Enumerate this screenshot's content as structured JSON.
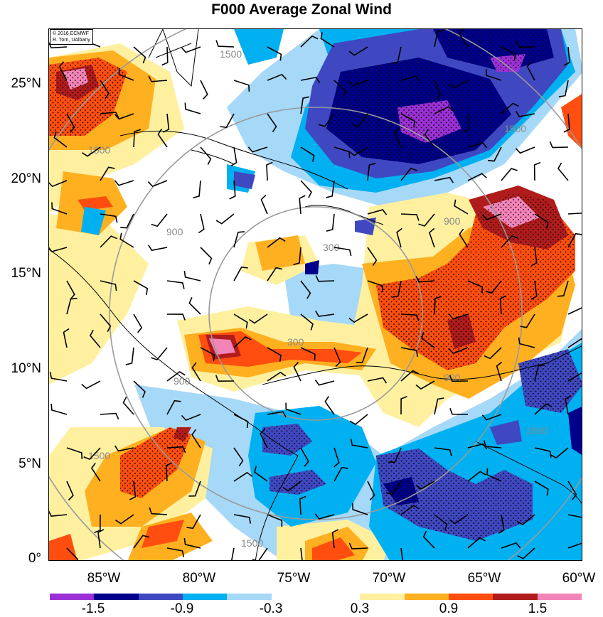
{
  "title": "F000 Average Zonal Wind",
  "credit": {
    "line1": "© 2016 ECMWF",
    "line2": "R. Torn, UAlbany"
  },
  "axes": {
    "lat_labels": [
      "25°N",
      "20°N",
      "15°N",
      "10°N",
      "5°N",
      "0°"
    ],
    "lon_labels": [
      "85°W",
      "80°W",
      "75°W",
      "70°W",
      "65°W",
      "60°W"
    ]
  },
  "contour_labels": [
    "1500",
    "900",
    "300"
  ],
  "colorbar": {
    "colors": [
      "#9b30d6",
      "#00008b",
      "#3f48c0",
      "#00b0f0",
      "#a6d8f7",
      "#ffffff",
      "#ffffff",
      "#fff0a0",
      "#ffb020",
      "#ff4e10",
      "#b01c1c",
      "#f384b8"
    ],
    "tick_labels": [
      "-1.5",
      "-0.9",
      "-0.3",
      "0.3",
      "0.9",
      "1.5"
    ]
  },
  "legend_colors": {
    "strong_positive": "#f384b8",
    "positive_dark": "#b01c1c",
    "positive": "#ff4e10",
    "positive_light": "#ffb020",
    "weak_positive": "#fff0a0",
    "weak_negative": "#a6d8f7",
    "negative": "#00b0f0",
    "negative_dark": "#3f48c0",
    "strong_negative": "#00008b",
    "extreme_negative": "#9b30d6"
  }
}
